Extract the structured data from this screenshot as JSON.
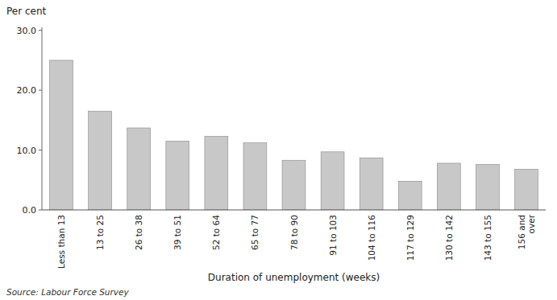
{
  "chart_data": {
    "type": "bar",
    "categories": [
      "Less than 13",
      "13 to 25",
      "26 to 38",
      "39 to 51",
      "52 to 64",
      "65 to 77",
      "78 to 90",
      "91 to 103",
      "104 to 116",
      "117 to 129",
      "130 to 142",
      "143 to 155",
      "156 and\nover"
    ],
    "values": [
      25.0,
      16.5,
      13.7,
      11.5,
      12.3,
      11.2,
      8.3,
      9.7,
      8.7,
      4.8,
      7.8,
      7.6,
      6.8
    ],
    "color": "#c8c8c8",
    "xlabel": "Duration of unemployment (weeks)",
    "ylabel": "Per cent",
    "ylim": [
      0,
      30.5
    ],
    "yticks": [
      {
        "value": 0.0,
        "label": "0.0"
      },
      {
        "value": 10.0,
        "label": "10.0"
      },
      {
        "value": 20.0,
        "label": "20.0"
      },
      {
        "value": 30.0,
        "label": "30.0"
      }
    ],
    "source": "Source: Labour Force Survey",
    "grid": false
  }
}
